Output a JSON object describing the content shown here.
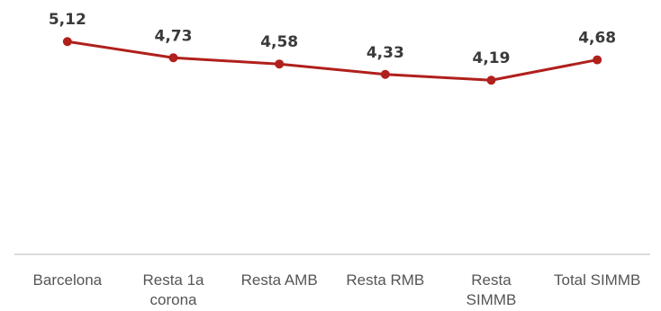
{
  "chart_data": {
    "type": "line",
    "categories": [
      [
        "Barcelona"
      ],
      [
        "Resta 1a",
        "corona"
      ],
      [
        "Resta AMB"
      ],
      [
        "Resta RMB"
      ],
      [
        "Resta",
        "SIMMB"
      ],
      [
        "Total SIMMB"
      ]
    ],
    "series": [
      {
        "values": [
          5.12,
          4.73,
          4.58,
          4.33,
          4.19,
          4.68
        ],
        "labels": [
          "5,12",
          "4,73",
          "4,58",
          "4,33",
          "4,19",
          "4,68"
        ]
      }
    ],
    "title": "",
    "xlabel": "",
    "ylabel": "",
    "ylim": [
      0,
      6.12
    ],
    "grid": false,
    "legend": "none",
    "colors": {
      "line": "#b0201c",
      "axis": "#c8c8c8"
    }
  }
}
